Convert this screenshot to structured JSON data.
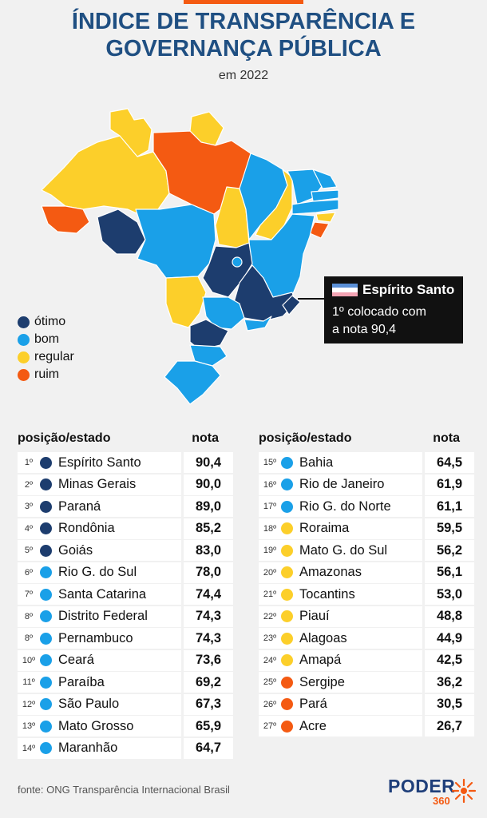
{
  "header": {
    "title": "ÍNDICE DE TRANSPARÊNCIA E\nGOVERNANÇA PÚBLICA",
    "subtitle": "em 2022"
  },
  "colors": {
    "otimo": "#1d3d6e",
    "bom": "#1aa0e8",
    "regular": "#fccf2a",
    "ruim": "#f45a12",
    "title": "#1f4f82",
    "accent": "#f45a12"
  },
  "legend": [
    {
      "label": "ótimo",
      "category": "otimo"
    },
    {
      "label": "bom",
      "category": "bom"
    },
    {
      "label": "regular",
      "category": "regular"
    },
    {
      "label": "ruim",
      "category": "ruim"
    }
  ],
  "callout": {
    "title": "Espírito Santo",
    "text": "1º colocado com\na nota 90,4"
  },
  "table": {
    "header_rank": "posição/estado",
    "header_score": "nota"
  },
  "chart_data": {
    "type": "table",
    "title": "ÍNDICE DE TRANSPARÊNCIA E GOVERNANÇA PÚBLICA",
    "subtitle": "em 2022",
    "columns": [
      "posição/estado",
      "nota"
    ],
    "rows": [
      {
        "rank": "1º",
        "state": "Espírito Santo",
        "score": "90,4",
        "category": "otimo"
      },
      {
        "rank": "2º",
        "state": "Minas Gerais",
        "score": "90,0",
        "category": "otimo"
      },
      {
        "rank": "3º",
        "state": "Paraná",
        "score": "89,0",
        "category": "otimo"
      },
      {
        "rank": "4º",
        "state": "Rondônia",
        "score": "85,2",
        "category": "otimo"
      },
      {
        "rank": "5º",
        "state": "Goiás",
        "score": "83,0",
        "category": "otimo"
      },
      {
        "rank": "6º",
        "state": "Rio G. do Sul",
        "score": "78,0",
        "category": "bom"
      },
      {
        "rank": "7º",
        "state": "Santa Catarina",
        "score": "74,4",
        "category": "bom"
      },
      {
        "rank": "8º",
        "state": "Distrito Federal",
        "score": "74,3",
        "category": "bom"
      },
      {
        "rank": "8º",
        "state": "Pernambuco",
        "score": "74,3",
        "category": "bom"
      },
      {
        "rank": "10º",
        "state": "Ceará",
        "score": "73,6",
        "category": "bom"
      },
      {
        "rank": "11º",
        "state": "Paraíba",
        "score": "69,2",
        "category": "bom"
      },
      {
        "rank": "12º",
        "state": "São Paulo",
        "score": "67,3",
        "category": "bom"
      },
      {
        "rank": "13º",
        "state": "Mato Grosso",
        "score": "65,9",
        "category": "bom"
      },
      {
        "rank": "14º",
        "state": "Maranhão",
        "score": "64,7",
        "category": "bom"
      },
      {
        "rank": "15º",
        "state": "Bahia",
        "score": "64,5",
        "category": "bom"
      },
      {
        "rank": "16º",
        "state": "Rio de Janeiro",
        "score": "61,9",
        "category": "bom"
      },
      {
        "rank": "17º",
        "state": "Rio G. do Norte",
        "score": "61,1",
        "category": "bom"
      },
      {
        "rank": "18º",
        "state": "Roraima",
        "score": "59,5",
        "category": "regular"
      },
      {
        "rank": "19º",
        "state": "Mato G. do Sul",
        "score": "56,2",
        "category": "regular"
      },
      {
        "rank": "20º",
        "state": "Amazonas",
        "score": "56,1",
        "category": "regular"
      },
      {
        "rank": "21º",
        "state": "Tocantins",
        "score": "53,0",
        "category": "regular"
      },
      {
        "rank": "22º",
        "state": "Piauí",
        "score": "48,8",
        "category": "regular"
      },
      {
        "rank": "23º",
        "state": "Alagoas",
        "score": "44,9",
        "category": "regular"
      },
      {
        "rank": "24º",
        "state": "Amapá",
        "score": "42,5",
        "category": "regular"
      },
      {
        "rank": "25º",
        "state": "Sergipe",
        "score": "36,2",
        "category": "ruim"
      },
      {
        "rank": "26º",
        "state": "Pará",
        "score": "30,5",
        "category": "ruim"
      },
      {
        "rank": "27º",
        "state": "Acre",
        "score": "26,7",
        "category": "ruim"
      }
    ]
  },
  "footer": {
    "source": "fonte: ONG Transparência Internacional Brasil",
    "logo_main": "PODER",
    "logo_sub": "360"
  }
}
